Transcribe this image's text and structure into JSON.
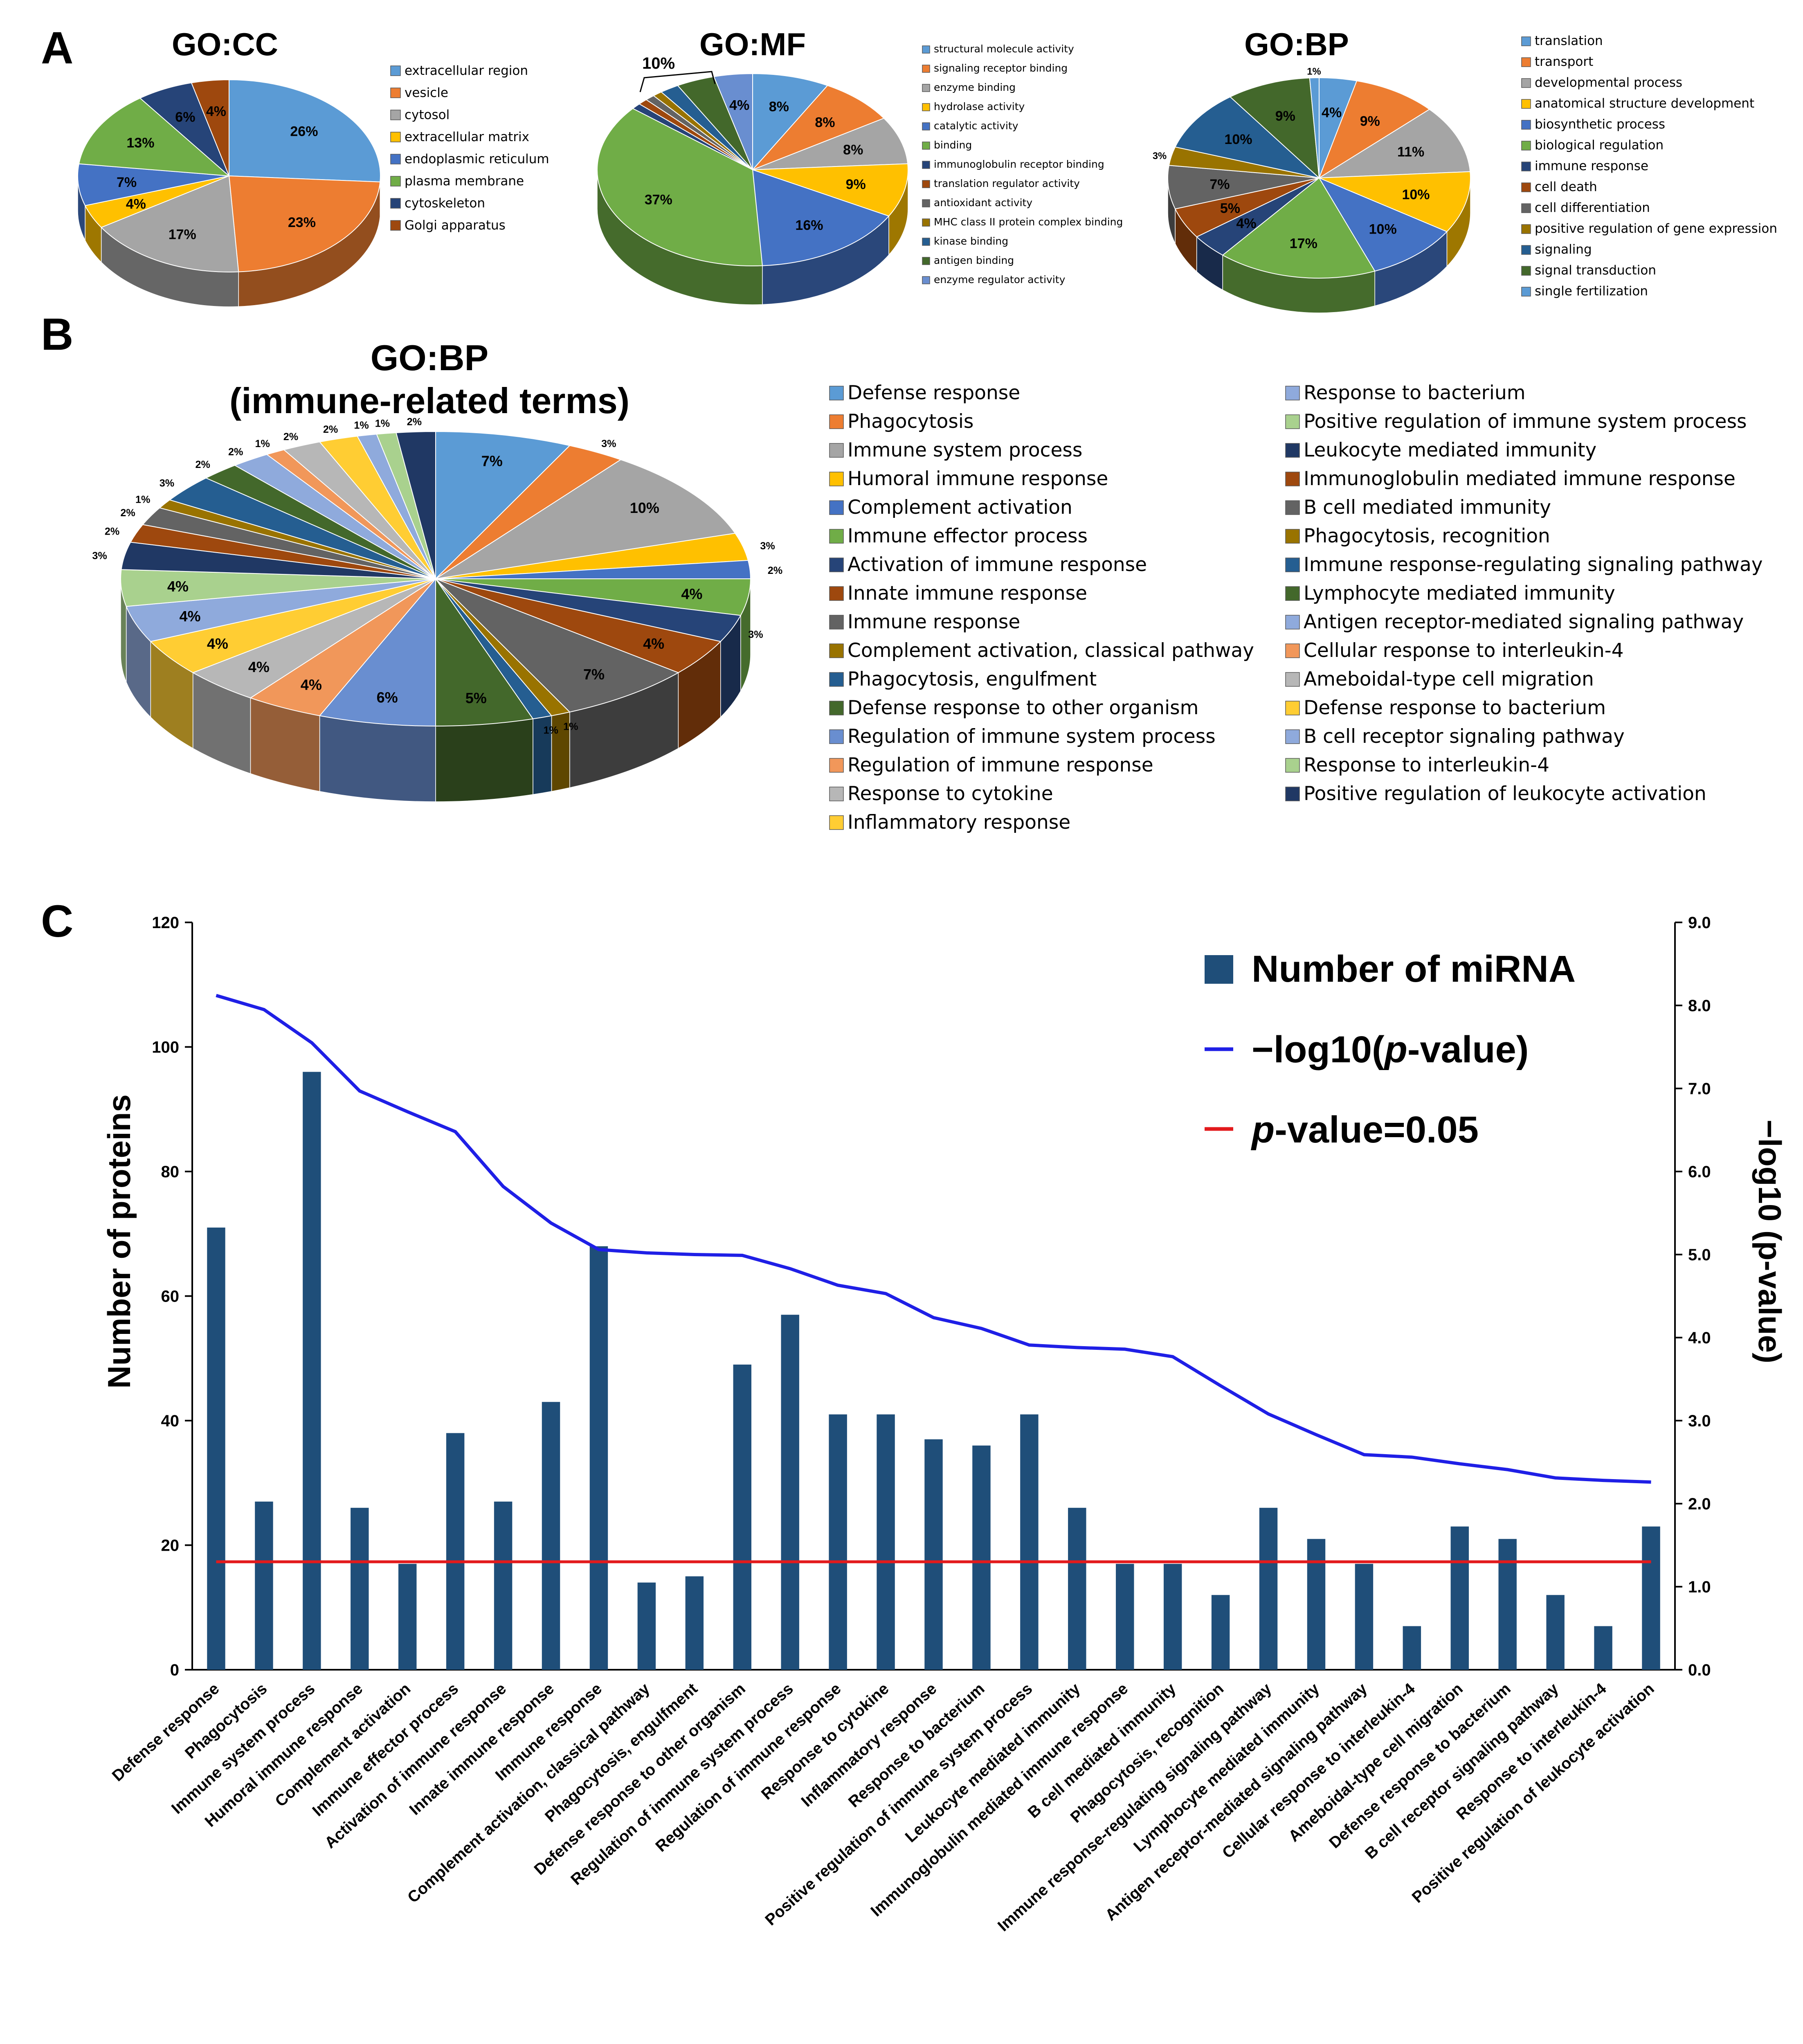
{
  "panels": {
    "a": "A",
    "b": "B",
    "c": "C"
  },
  "colors": {
    "palette": [
      "#5B9BD5",
      "#ED7D31",
      "#A5A5A5",
      "#FFC000",
      "#4472C4",
      "#70AD47",
      "#264478",
      "#9E480E",
      "#636363",
      "#997300",
      "#255E91",
      "#43682B",
      "#698ED0",
      "#F1975A",
      "#B7B7B7",
      "#FFCD33",
      "#8FAADC",
      "#A9D18E",
      "#203864"
    ],
    "bar": "#1F4E79",
    "pline": "#1F1FE6",
    "threshold": "#E31A1C"
  },
  "chart_data": [
    {
      "type": "pie",
      "title": "GO:CC",
      "labels": [
        "extracellular region",
        "vesicle",
        "cytosol",
        "extracellular matrix",
        "endoplasmic reticulum",
        "plasma membrane",
        "cytoskeleton",
        "Golgi apparatus"
      ],
      "values": [
        26,
        23,
        17,
        4,
        7,
        13,
        6,
        4
      ],
      "slice_labels": [
        "26%",
        "23%",
        "17%",
        "4%",
        "7%",
        "13%",
        "6%",
        "4%"
      ],
      "color_idx": [
        0,
        1,
        2,
        3,
        4,
        5,
        6,
        7
      ]
    },
    {
      "type": "pie",
      "title": "GO:MF",
      "labels": [
        "structural molecule activity",
        "signaling receptor binding",
        "enzyme binding",
        "hydrolase activity",
        "catalytic activity",
        "binding",
        "immunoglobulin receptor binding",
        "translation regulator activity",
        "antioxidant activity",
        "MHC class II protein complex binding",
        "kinase binding",
        "antigen binding",
        "enzyme regulator activity"
      ],
      "values": [
        8,
        8,
        8,
        9,
        16,
        37,
        1,
        1,
        1,
        1,
        2,
        4,
        4
      ],
      "slice_labels": [
        "8%",
        "8%",
        "8%",
        "9%",
        "16%",
        "37%",
        "",
        "",
        "",
        "",
        "",
        "",
        "4%"
      ],
      "color_idx": [
        0,
        1,
        2,
        3,
        4,
        5,
        6,
        7,
        8,
        9,
        10,
        11,
        12
      ],
      "bracket_label": "10%"
    },
    {
      "type": "pie",
      "title": "GO:BP",
      "labels": [
        "translation",
        "transport",
        "developmental process",
        "anatomical structure development",
        "biosynthetic process",
        "biological regulation",
        "immune response",
        "cell death",
        "cell differentiation",
        "positive regulation of gene expression",
        "signaling",
        "signal transduction",
        "single fertilization"
      ],
      "values": [
        4,
        9,
        11,
        10,
        10,
        17,
        4,
        5,
        7,
        3,
        10,
        9,
        1
      ],
      "slice_labels": [
        "4%",
        "9%",
        "11%",
        "10%",
        "10%",
        "17%",
        "4%",
        "5%",
        "7%",
        "3%",
        "10%",
        "9%",
        "1%"
      ],
      "color_idx": [
        0,
        1,
        2,
        3,
        4,
        5,
        6,
        7,
        8,
        9,
        10,
        11,
        0
      ]
    },
    {
      "type": "pie",
      "title": "GO:BP",
      "subtitle": "(immune-related terms)",
      "labels": [
        "Defense response",
        "Phagocytosis",
        "Immune system process",
        "Humoral immune response",
        "Complement activation",
        "Immune effector process",
        "Activation of immune response",
        "Innate immune response",
        "Immune response",
        "Complement activation, classical pathway",
        "Phagocytosis, engulfment",
        "Defense response to other organism",
        "Regulation of immune system process",
        "Regulation of immune response",
        "Response to cytokine",
        "Inflammatory response",
        "Response to bacterium",
        "Positive regulation of immune system process",
        "Leukocyte mediated immunity",
        "Immunoglobulin mediated immune response",
        "B cell mediated immunity",
        "Phagocytosis, recognition",
        "Immune response-regulating signaling pathway",
        "Lymphocyte mediated immunity",
        "Antigen receptor-mediated signaling pathway",
        "Cellular response to interleukin-4",
        "Ameboidal-type cell migration",
        "Defense response to bacterium",
        "B cell receptor signaling pathway",
        "Response to interleukin-4",
        "Positive regulation of leukocyte activation"
      ],
      "values": [
        7,
        3,
        10,
        3,
        2,
        4,
        3,
        4,
        7,
        1,
        1,
        5,
        6,
        4,
        4,
        4,
        4,
        4,
        3,
        2,
        2,
        1,
        3,
        2,
        2,
        1,
        2,
        2,
        1,
        1,
        2
      ],
      "slice_labels": [
        "7%",
        "3%",
        "10%",
        "3%",
        "2%",
        "4%",
        "3%",
        "4%",
        "7%",
        "1%",
        "1%",
        "5%",
        "6%",
        "4%",
        "4%",
        "4%",
        "4%",
        "4%",
        "3%",
        "2%",
        "2%",
        "1%",
        "3%",
        "2%",
        "2%",
        "1%",
        "2%",
        "2%",
        "1%",
        "1%",
        "2%"
      ],
      "color_idx": [
        0,
        1,
        2,
        3,
        4,
        5,
        6,
        7,
        8,
        9,
        10,
        11,
        12,
        13,
        14,
        15,
        16,
        17,
        18,
        7,
        8,
        9,
        10,
        11,
        16,
        13,
        14,
        15,
        16,
        17,
        18
      ]
    },
    {
      "type": "bar",
      "categories": [
        "Defense response",
        "Phagocytosis",
        "Immune system process",
        "Humoral immune response",
        "Complement activation",
        "Immune effector process",
        "Activation of immune response",
        "Innate immune response",
        "Immune response",
        "Complement activation, classical pathway",
        "Phagocytosis, engulfment",
        "Defense response to other organism",
        "Regulation of immune system process",
        "Regulation of immune response",
        "Response to cytokine",
        "Inflammatory response",
        "Response to bacterium",
        "Positive regulation of immune system process",
        "Leukocyte mediated immunity",
        "Immunoglobulin mediated immune response",
        "B cell mediated immunity",
        "Phagocytosis, recognition",
        "Immune response-regulating signaling pathway",
        "Lymphocyte mediated immunity",
        "Antigen receptor-mediated signaling pathway",
        "Cellular response to interleukin-4",
        "Ameboidal-type cell migration",
        "Defense response to bacterium",
        "B cell receptor signaling pathway",
        "Response to interleukin-4",
        "Positive regulation of leukocyte activation"
      ],
      "series": [
        {
          "name": "Number of miRNA",
          "type": "bar",
          "axis": "left",
          "values": [
            71,
            27,
            96,
            26,
            17,
            38,
            27,
            43,
            68,
            14,
            15,
            49,
            57,
            41,
            41,
            37,
            36,
            41,
            26,
            17,
            17,
            12,
            26,
            21,
            17,
            7,
            23,
            21,
            12,
            7,
            23
          ]
        },
        {
          "name": "−log10(p-value)",
          "type": "line",
          "axis": "right",
          "values": [
            8.12,
            7.95,
            7.55,
            6.97,
            6.72,
            6.48,
            5.82,
            5.38,
            5.06,
            5.02,
            5.0,
            4.99,
            4.83,
            4.63,
            4.53,
            4.24,
            4.11,
            3.91,
            3.88,
            3.86,
            3.77,
            3.42,
            3.08,
            2.83,
            2.59,
            2.56,
            2.48,
            2.41,
            2.31,
            2.28,
            2.26
          ]
        },
        {
          "name": "p-value=0.05",
          "type": "hline",
          "axis": "right",
          "value": 1.3
        }
      ],
      "ylabel": "Number of proteins",
      "y2label": "−log10 (p-value)",
      "ylim": [
        0,
        120
      ],
      "y2lim": [
        0,
        9
      ],
      "yticks": [
        "0",
        "20",
        "40",
        "60",
        "80",
        "100",
        "120"
      ],
      "y2ticks": [
        "0.0",
        "1.0",
        "2.0",
        "3.0",
        "4.0",
        "5.0",
        "6.0",
        "7.0",
        "8.0",
        "9.0"
      ],
      "legend": {
        "bar_label": "Number of miRNA",
        "line_prefix": "−log10(",
        "line_italic": "p",
        "line_suffix": "-value)",
        "hline_italic": "p",
        "hline_suffix": "-value=0.05",
        "position": "top-right"
      }
    }
  ]
}
